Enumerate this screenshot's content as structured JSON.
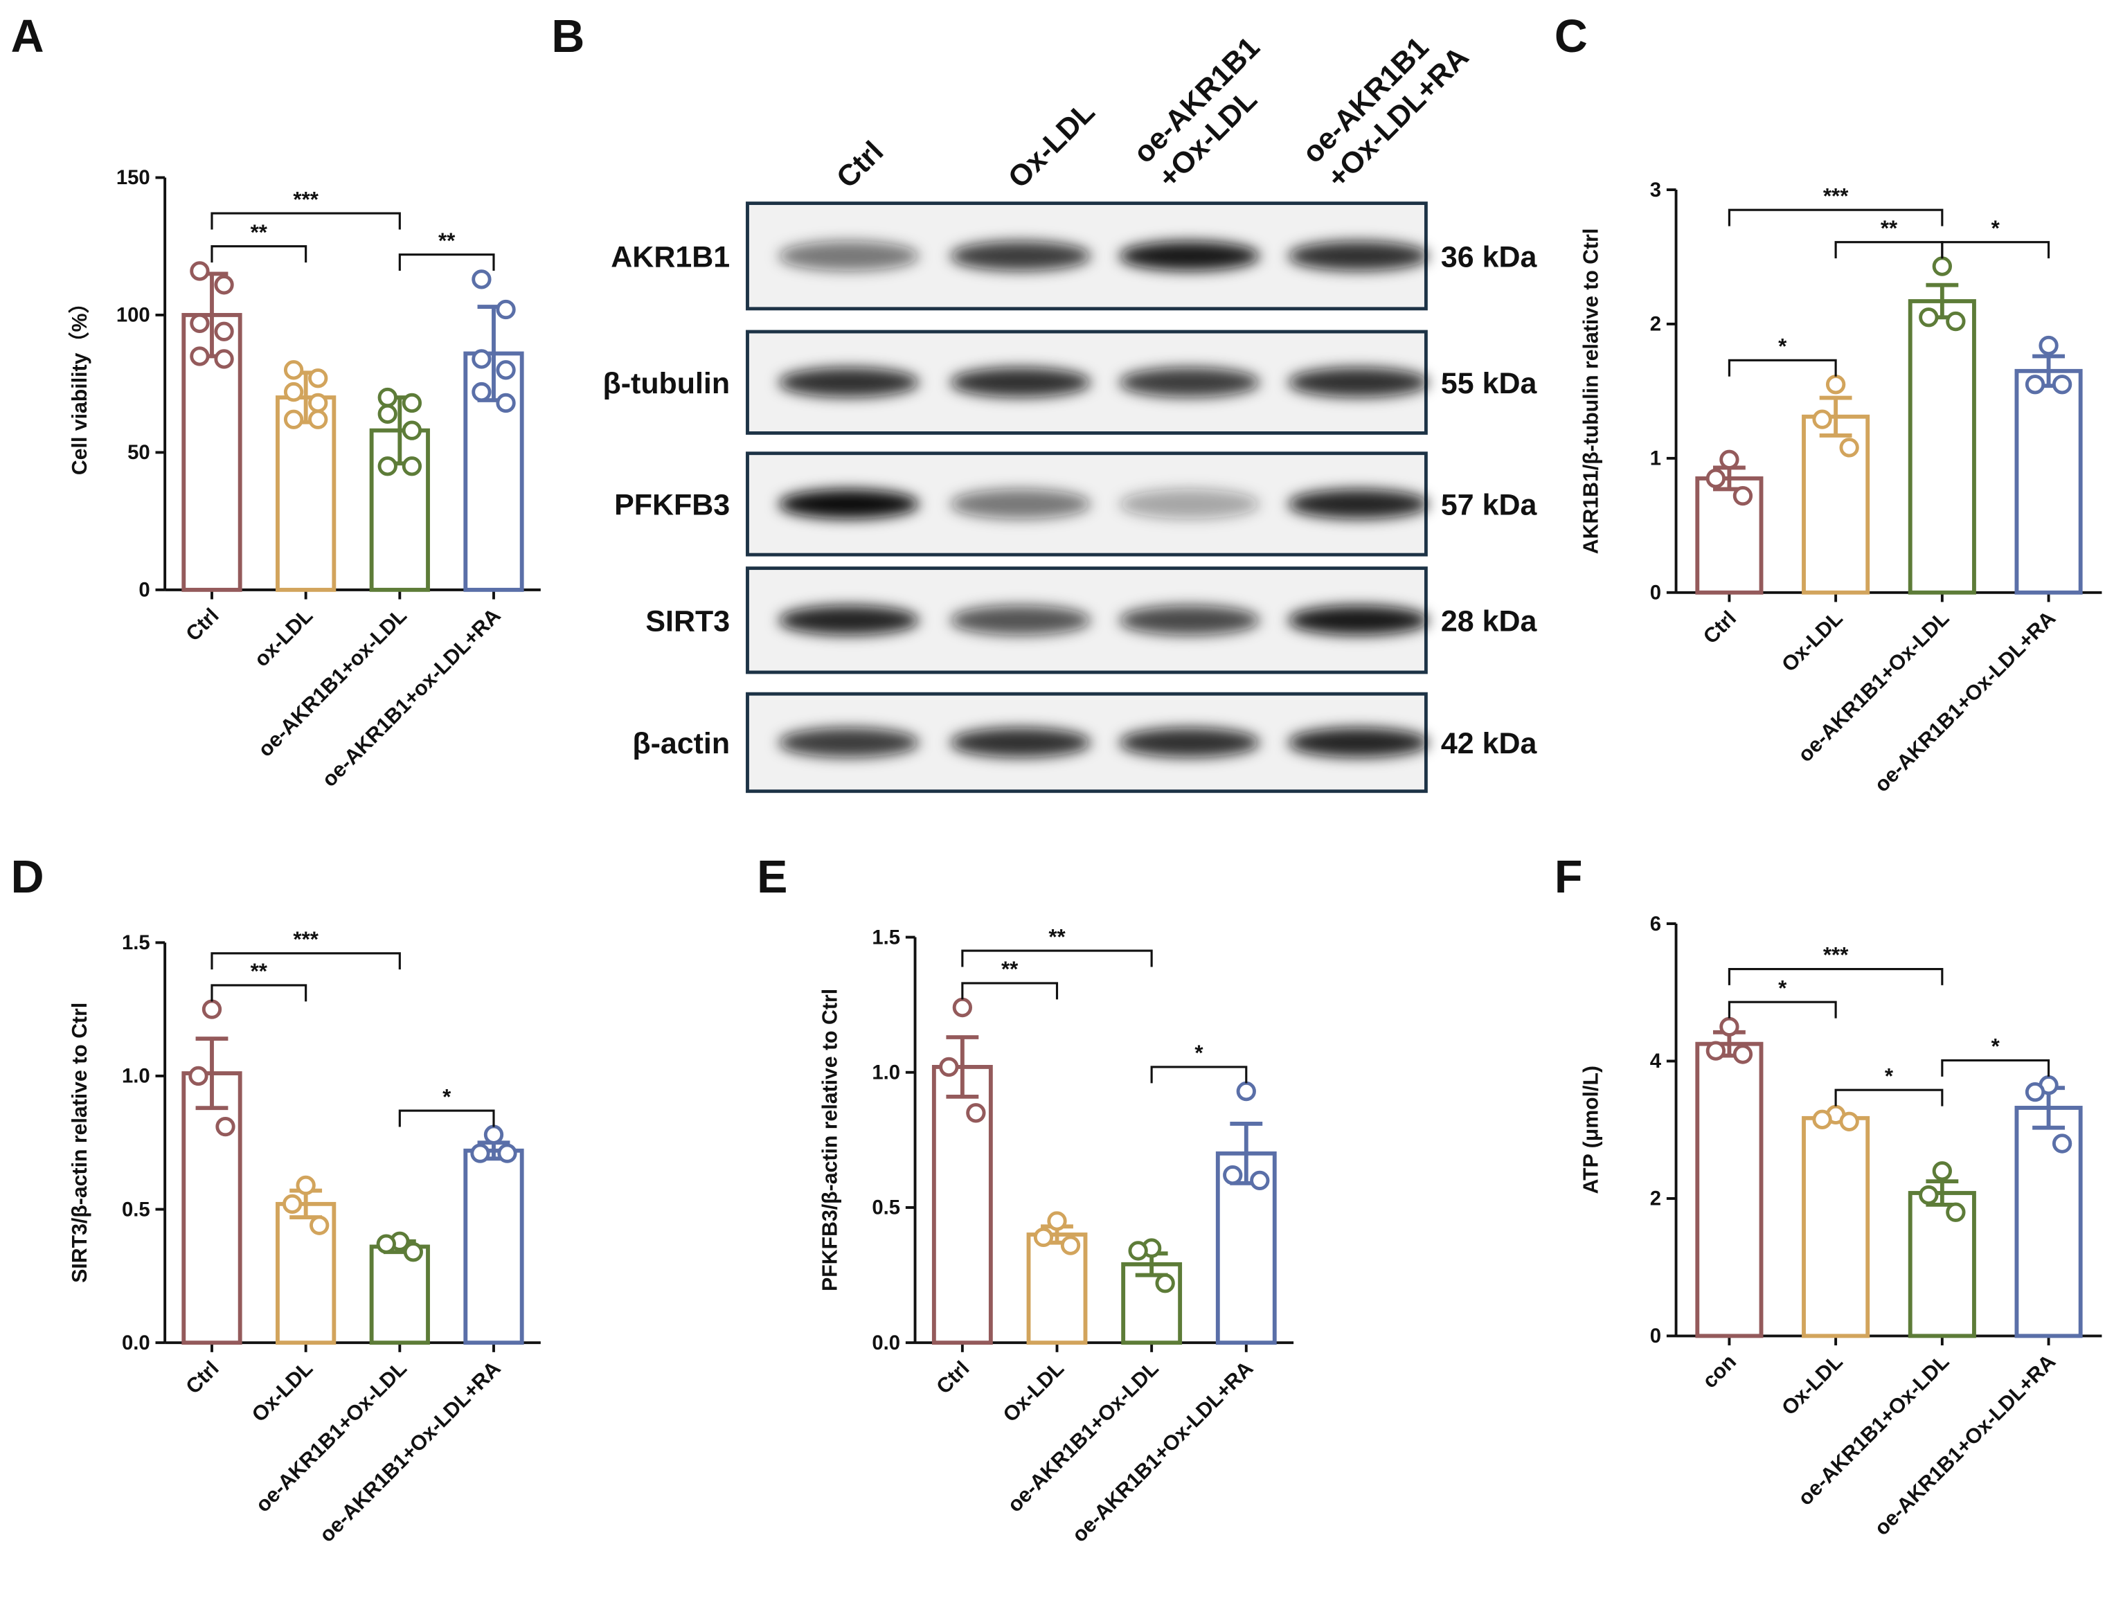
{
  "chart_data": [
    {
      "type": "bar",
      "panel": "A",
      "ylabel": "Cell viability（%）",
      "categories": [
        "Ctrl",
        "ox-LDL",
        "oe-AKR1B1+ox-LDL",
        "oe-AKR1B1+ox-LDL+RA"
      ],
      "colors": [
        "#945a5b",
        "#d2a45c",
        "#5d7c38",
        "#5a6fa8"
      ],
      "values": [
        100,
        70,
        58,
        86
      ],
      "errors": [
        15,
        9,
        12,
        17
      ],
      "points": [
        [
          116,
          111,
          97,
          94,
          85,
          84
        ],
        [
          80,
          77,
          72,
          68,
          62,
          62
        ],
        [
          70,
          68,
          64,
          58,
          45,
          45
        ],
        [
          113,
          102,
          84,
          80,
          72,
          68
        ]
      ],
      "ylim": [
        0,
        150
      ],
      "yticks": [
        0,
        50,
        100,
        150
      ],
      "comparisons": [
        {
          "groups": [
            0,
            1
          ],
          "label": "**"
        },
        {
          "groups": [
            0,
            2
          ],
          "label": "***"
        },
        {
          "groups": [
            2,
            3
          ],
          "label": "**"
        }
      ]
    },
    {
      "type": "bar",
      "panel": "C",
      "ylabel": "AKR1B1/β-tubulin relative to Ctrl",
      "categories": [
        "Ctrl",
        "Ox-LDL",
        "oe-AKR1B1+Ox-LDL",
        "oe-AKR1B1+Ox-LDL+RA"
      ],
      "colors": [
        "#945a5b",
        "#d2a45c",
        "#5d7c38",
        "#5a6fa8"
      ],
      "values": [
        0.85,
        1.31,
        2.17,
        1.65
      ],
      "errors": [
        0.08,
        0.14,
        0.12,
        0.11
      ],
      "points": [
        [
          0.99,
          0.85,
          0.72
        ],
        [
          1.55,
          1.29,
          1.08
        ],
        [
          2.43,
          2.05,
          2.02
        ],
        [
          1.84,
          1.55,
          1.55
        ]
      ],
      "ylim": [
        0,
        3
      ],
      "yticks": [
        0,
        1,
        2,
        3
      ],
      "comparisons": [
        {
          "groups": [
            0,
            1
          ],
          "label": "*"
        },
        {
          "groups": [
            1,
            2
          ],
          "label": "**"
        },
        {
          "groups": [
            0,
            2
          ],
          "label": "***"
        },
        {
          "groups": [
            2,
            3
          ],
          "label": "*"
        }
      ]
    },
    {
      "type": "bar",
      "panel": "D",
      "ylabel": "SIRT3/β-actin relative to Ctrl",
      "categories": [
        "Ctrl",
        "Ox-LDL",
        "oe-AKR1B1+Ox-LDL",
        "oe-AKR1B1+Ox-LDL+RA"
      ],
      "colors": [
        "#945a5b",
        "#d2a45c",
        "#5d7c38",
        "#5a6fa8"
      ],
      "values": [
        1.01,
        0.52,
        0.36,
        0.72
      ],
      "errors": [
        0.13,
        0.05,
        0.02,
        0.03
      ],
      "points": [
        [
          1.25,
          1.0,
          0.81
        ],
        [
          0.59,
          0.52,
          0.44
        ],
        [
          0.38,
          0.37,
          0.34
        ],
        [
          0.78,
          0.71,
          0.71
        ]
      ],
      "ylim": [
        0,
        1.5
      ],
      "yticks": [
        {
          "value": 0,
          "label": "0.0"
        },
        0.5,
        {
          "value": 1,
          "label": "1.0"
        },
        1.5
      ],
      "comparisons": [
        {
          "groups": [
            0,
            1
          ],
          "label": "**"
        },
        {
          "groups": [
            0,
            2
          ],
          "label": "***"
        },
        {
          "groups": [
            2,
            3
          ],
          "label": "*"
        }
      ]
    },
    {
      "type": "bar",
      "panel": "E",
      "ylabel": "PFKFB3/β-actin relative to Ctrl",
      "categories": [
        "Ctrl",
        "Ox-LDL",
        "oe-AKR1B1+Ox-LDL",
        "oe-AKR1B1+Ox-LDL+RA"
      ],
      "colors": [
        "#945a5b",
        "#d2a45c",
        "#5d7c38",
        "#5a6fa8"
      ],
      "values": [
        1.02,
        0.4,
        0.29,
        0.7
      ],
      "errors": [
        0.11,
        0.03,
        0.04,
        0.11
      ],
      "points": [
        [
          1.24,
          1.02,
          0.85
        ],
        [
          0.45,
          0.39,
          0.36
        ],
        [
          0.35,
          0.34,
          0.22
        ],
        [
          0.93,
          0.62,
          0.6
        ]
      ],
      "ylim": [
        0,
        1.5
      ],
      "yticks": [
        {
          "value": 0,
          "label": "0.0"
        },
        0.5,
        {
          "value": 1,
          "label": "1.0"
        },
        1.5
      ],
      "comparisons": [
        {
          "groups": [
            0,
            1
          ],
          "label": "**"
        },
        {
          "groups": [
            0,
            2
          ],
          "label": "**"
        },
        {
          "groups": [
            2,
            3
          ],
          "label": "*"
        }
      ]
    },
    {
      "type": "bar",
      "panel": "F",
      "ylabel": "ATP (μmol/L)",
      "categories": [
        "con",
        "Ox-LDL",
        "oe-AKR1B1+Ox-LDL",
        "oe-AKR1B1+Ox-LDL+RA"
      ],
      "colors": [
        "#945a5b",
        "#d2a45c",
        "#5d7c38",
        "#5a6fa8"
      ],
      "values": [
        4.25,
        3.17,
        2.08,
        3.32
      ],
      "errors": [
        0.17,
        0.05,
        0.17,
        0.29
      ],
      "points": [
        [
          4.5,
          4.15,
          4.1
        ],
        [
          3.22,
          3.15,
          3.12
        ],
        [
          2.4,
          2.05,
          1.8
        ],
        [
          3.65,
          3.55,
          2.8
        ]
      ],
      "ylim": [
        0,
        6
      ],
      "yticks": [
        0,
        2,
        4,
        6
      ],
      "comparisons": [
        {
          "groups": [
            0,
            1
          ],
          "label": "*"
        },
        {
          "groups": [
            1,
            2
          ],
          "label": "*"
        },
        {
          "groups": [
            0,
            2
          ],
          "label": "***"
        },
        {
          "groups": [
            2,
            3
          ],
          "label": "*"
        }
      ]
    }
  ],
  "blot": {
    "panel": "B",
    "lanes": [
      [
        "Ctrl"
      ],
      [
        "Ox-LDL"
      ],
      [
        "oe-AKR1B1",
        "+Ox-LDL"
      ],
      [
        "oe-AKR1B1",
        "+Ox-LDL+RA"
      ]
    ],
    "bands": [
      {
        "name": "AKR1B1",
        "size": "36 kDa"
      },
      {
        "name": "β-tubulin",
        "size": "55 kDa"
      },
      {
        "name": "PFKFB3",
        "size": "57 kDa"
      },
      {
        "name": "SIRT3",
        "size": "28 kDa"
      },
      {
        "name": "β-actin",
        "size": "42 kDa"
      }
    ]
  }
}
